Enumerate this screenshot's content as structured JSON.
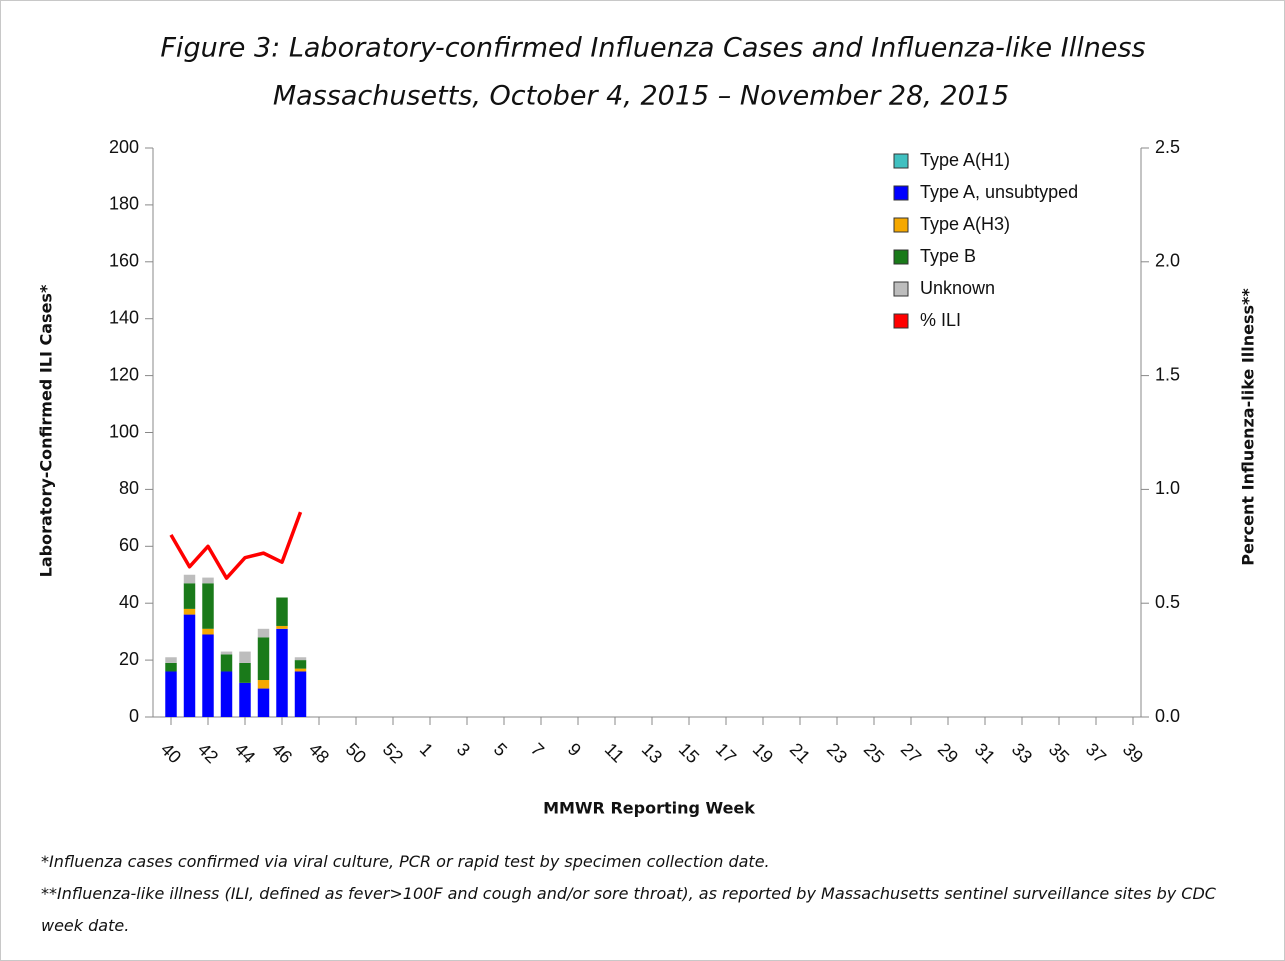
{
  "chart_data": {
    "type": "bar",
    "title": [
      "Figure 3: Laboratory-confirmed Influenza Cases and Influenza-like Illness",
      "Massachusetts, October 4, 2015 –  November 28, 2015"
    ],
    "x_label": "MMWR Reporting Week",
    "y_label": "Laboratory-Confirmed ILI Cases*",
    "y2_label": "Percent Influenza-like Illness**",
    "categories": [
      "40",
      null,
      "42",
      null,
      "44",
      null,
      "46",
      null,
      "48",
      null,
      "50",
      null,
      "52",
      null,
      "1",
      null,
      "3",
      null,
      "5",
      null,
      "7",
      null,
      "9",
      null,
      "11",
      null,
      "13",
      null,
      "15",
      null,
      "17",
      null,
      "19",
      null,
      "21",
      null,
      "23",
      null,
      "25",
      null,
      "27",
      null,
      "29",
      null,
      "31",
      null,
      "33",
      null,
      "35",
      null,
      "37",
      null,
      "39"
    ],
    "series": [
      {
        "name": "Type A(H1)",
        "color": "#40c0c0",
        "values": [
          0,
          0,
          0,
          0,
          0,
          0,
          0,
          0,
          null,
          null,
          null,
          null,
          null,
          null,
          null,
          null,
          null,
          null,
          null,
          null,
          null,
          null,
          null,
          null,
          null,
          null,
          null,
          null,
          null,
          null,
          null,
          null,
          null,
          null,
          null,
          null,
          null,
          null,
          null,
          null,
          null,
          null,
          null,
          null,
          null,
          null,
          null,
          null,
          null,
          null,
          null,
          null,
          null
        ]
      },
      {
        "name": "Type A, unsubtyped",
        "color": "#0000ff",
        "values": [
          16,
          36,
          29,
          16,
          12,
          10,
          31,
          16,
          null,
          null,
          null,
          null,
          null,
          null,
          null,
          null,
          null,
          null,
          null,
          null,
          null,
          null,
          null,
          null,
          null,
          null,
          null,
          null,
          null,
          null,
          null,
          null,
          null,
          null,
          null,
          null,
          null,
          null,
          null,
          null,
          null,
          null,
          null,
          null,
          null,
          null,
          null,
          null,
          null,
          null,
          null,
          null,
          null
        ]
      },
      {
        "name": "Type A(H3)",
        "color": "#f5a800",
        "values": [
          0,
          2,
          2,
          0,
          0,
          3,
          1,
          1,
          null,
          null,
          null,
          null,
          null,
          null,
          null,
          null,
          null,
          null,
          null,
          null,
          null,
          null,
          null,
          null,
          null,
          null,
          null,
          null,
          null,
          null,
          null,
          null,
          null,
          null,
          null,
          null,
          null,
          null,
          null,
          null,
          null,
          null,
          null,
          null,
          null,
          null,
          null,
          null,
          null,
          null,
          null,
          null,
          null
        ]
      },
      {
        "name": "Type B",
        "color": "#1a7a1a",
        "values": [
          3,
          9,
          16,
          6,
          7,
          15,
          10,
          3,
          null,
          null,
          null,
          null,
          null,
          null,
          null,
          null,
          null,
          null,
          null,
          null,
          null,
          null,
          null,
          null,
          null,
          null,
          null,
          null,
          null,
          null,
          null,
          null,
          null,
          null,
          null,
          null,
          null,
          null,
          null,
          null,
          null,
          null,
          null,
          null,
          null,
          null,
          null,
          null,
          null,
          null,
          null,
          null,
          null
        ]
      },
      {
        "name": "Unknown",
        "color": "#bdbdbd",
        "values": [
          2,
          3,
          2,
          1,
          4,
          3,
          0,
          1,
          null,
          null,
          null,
          null,
          null,
          null,
          null,
          null,
          null,
          null,
          null,
          null,
          null,
          null,
          null,
          null,
          null,
          null,
          null,
          null,
          null,
          null,
          null,
          null,
          null,
          null,
          null,
          null,
          null,
          null,
          null,
          null,
          null,
          null,
          null,
          null,
          null,
          null,
          null,
          null,
          null,
          null,
          null,
          null,
          null
        ]
      },
      {
        "name": "% ILI",
        "color": "#ff0000",
        "type": "line",
        "axis": "y2",
        "values": [
          0.8,
          0.66,
          0.75,
          0.61,
          0.7,
          0.72,
          0.68,
          0.9,
          null,
          null,
          null,
          null,
          null,
          null,
          null,
          null,
          null,
          null,
          null,
          null,
          null,
          null,
          null,
          null,
          null,
          null,
          null,
          null,
          null,
          null,
          null,
          null,
          null,
          null,
          null,
          null,
          null,
          null,
          null,
          null,
          null,
          null,
          null,
          null,
          null,
          null,
          null,
          null,
          null,
          null,
          null,
          null,
          null
        ]
      }
    ],
    "ylim": [
      0,
      200
    ],
    "yticks": [
      0,
      20,
      40,
      60,
      80,
      100,
      120,
      140,
      160,
      180,
      200
    ],
    "y2lim": [
      0,
      2.5
    ],
    "y2ticks": [
      {
        "value": 0,
        "label": "0.0"
      },
      0.5,
      {
        "value": 1,
        "label": "1.0"
      },
      1.5,
      {
        "value": 2,
        "label": "2.0"
      },
      2.5
    ],
    "legend": "top-right",
    "grid": false,
    "footnotes": [
      "*Influenza cases confirmed via viral culture, PCR or rapid test by specimen collection date.",
      "**Influenza-like illness (ILI, defined as fever>100F and cough and/or sore throat), as reported by Massachusetts sentinel surveillance sites by CDC week date."
    ]
  }
}
